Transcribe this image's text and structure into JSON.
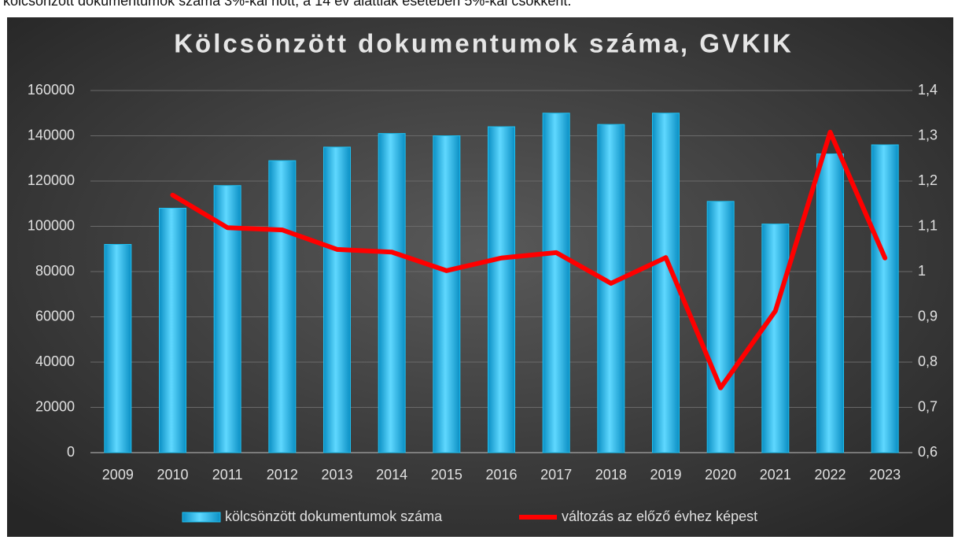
{
  "caption": "kölcsönzött dokumentumok száma 3%-kal nőtt, a 14 év alattiak esetében 5%-kal csökkent.",
  "chart_data": {
    "type": "bar-line",
    "title": "Kölcsönzött dokumentumok száma, GVKIK",
    "categories": [
      "2009",
      "2010",
      "2011",
      "2012",
      "2013",
      "2014",
      "2015",
      "2016",
      "2017",
      "2018",
      "2019",
      "2020",
      "2021",
      "2022",
      "2023"
    ],
    "series": [
      {
        "name": "kölcsönzött dokumentumok száma",
        "color": "#1ec0f0",
        "type": "bar",
        "values": [
          92000,
          108000,
          118000,
          129000,
          135000,
          141000,
          140000,
          144000,
          150000,
          145000,
          150000,
          111000,
          101000,
          132000,
          136000
        ]
      },
      {
        "name": "változás az előző évhez képest",
        "color": "#ff0000",
        "type": "line",
        "axis": "y2",
        "values": [
          null,
          1.169,
          1.097,
          1.092,
          1.049,
          1.043,
          1.002,
          1.03,
          1.042,
          0.974,
          1.031,
          0.743,
          0.913,
          1.308,
          1.03
        ]
      }
    ],
    "ylim": [
      0,
      160000
    ],
    "yticks": [
      0,
      20000,
      40000,
      60000,
      80000,
      100000,
      120000,
      140000,
      160000
    ],
    "y2lim": [
      0.6,
      1.4
    ],
    "y2ticks": [
      {
        "value": 0.6,
        "label": "0,6"
      },
      {
        "value": 0.7,
        "label": "0,7"
      },
      {
        "value": 0.8,
        "label": "0,8"
      },
      {
        "value": 0.9,
        "label": "0,9"
      },
      1,
      {
        "value": 1.1,
        "label": "1,1"
      },
      {
        "value": 1.2,
        "label": "1,2"
      },
      {
        "value": 1.3,
        "label": "1,3"
      },
      {
        "value": 1.4,
        "label": "1,4"
      }
    ],
    "grid": true,
    "legend": "bottom"
  }
}
